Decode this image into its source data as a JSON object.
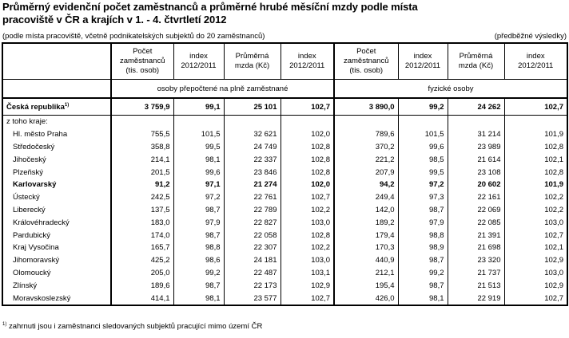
{
  "title_line1": "Průměrný evidenční počet zaměstnanců a průměrné hrubé měsíční mzdy podle místa",
  "title_line2": "pracoviště v ČR a krajích v 1. - 4. čtvrtletí 2012",
  "subtitle_left": "(podle místa pracoviště, včetně podnikatelských subjektů do 20 zaměstnanců)",
  "subtitle_right": "(předběžné výsledky)",
  "headers": {
    "col1": "Počet zaměstnanců (tis. osob)",
    "col2": "index 2012/2011",
    "col3": "Průměrná mzda (Kč)",
    "col4": "index 2012/2011",
    "col5": "Počet zaměstnanců (tis. osob)",
    "col6": "index 2012/2011",
    "col7": "Průměrná mzda (Kč)",
    "col8": "index 2012/2011",
    "group1": "osoby přepočtené na plně zaměstnané",
    "group2": "fyzické osoby"
  },
  "total": {
    "label": "Česká republika",
    "sup": "1)",
    "values": [
      "3 759,9",
      "99,1",
      "25 101",
      "102,7",
      "3 890,0",
      "99,2",
      "24 262",
      "102,7"
    ]
  },
  "of_which": "z toho kraje:",
  "rows": [
    {
      "label": "Hl. město Praha",
      "bold": false,
      "values": [
        "755,5",
        "101,5",
        "32 621",
        "102,0",
        "789,6",
        "101,5",
        "31 214",
        "101,9"
      ]
    },
    {
      "label": "Středočeský",
      "bold": false,
      "values": [
        "358,8",
        "99,5",
        "24 749",
        "102,8",
        "370,2",
        "99,6",
        "23 989",
        "102,8"
      ]
    },
    {
      "label": "Jihočeský",
      "bold": false,
      "values": [
        "214,1",
        "98,1",
        "22 337",
        "102,8",
        "221,2",
        "98,5",
        "21 614",
        "102,1"
      ]
    },
    {
      "label": "Plzeňský",
      "bold": false,
      "values": [
        "201,5",
        "99,6",
        "23 846",
        "102,8",
        "207,9",
        "99,5",
        "23 108",
        "102,8"
      ]
    },
    {
      "label": "Karlovarský",
      "bold": true,
      "values": [
        "91,2",
        "97,1",
        "21 274",
        "102,0",
        "94,2",
        "97,2",
        "20 602",
        "101,9"
      ]
    },
    {
      "label": "Ústecký",
      "bold": false,
      "values": [
        "242,5",
        "97,2",
        "22 761",
        "102,7",
        "249,4",
        "97,3",
        "22 161",
        "102,2"
      ]
    },
    {
      "label": "Liberecký",
      "bold": false,
      "values": [
        "137,5",
        "98,7",
        "22 789",
        "102,2",
        "142,0",
        "98,7",
        "22 069",
        "102,2"
      ]
    },
    {
      "label": "Královéhradecký",
      "bold": false,
      "values": [
        "183,0",
        "97,9",
        "22 827",
        "103,0",
        "189,2",
        "97,9",
        "22 085",
        "103,0"
      ]
    },
    {
      "label": "Pardubický",
      "bold": false,
      "values": [
        "174,0",
        "98,7",
        "22 058",
        "102,8",
        "179,4",
        "98,8",
        "21 391",
        "102,7"
      ]
    },
    {
      "label": "Kraj Vysočina",
      "bold": false,
      "values": [
        "165,7",
        "98,8",
        "22 307",
        "102,2",
        "170,3",
        "98,9",
        "21 698",
        "102,1"
      ]
    },
    {
      "label": "Jihomoravský",
      "bold": false,
      "values": [
        "425,2",
        "98,6",
        "24 181",
        "103,0",
        "440,9",
        "98,7",
        "23 320",
        "102,9"
      ]
    },
    {
      "label": "Olomoucký",
      "bold": false,
      "values": [
        "205,0",
        "99,2",
        "22 487",
        "103,1",
        "212,1",
        "99,2",
        "21 737",
        "103,0"
      ]
    },
    {
      "label": "Zlínský",
      "bold": false,
      "values": [
        "189,6",
        "98,7",
        "22 173",
        "102,9",
        "195,4",
        "98,7",
        "21 513",
        "102,9"
      ]
    },
    {
      "label": "Moravskoslezský",
      "bold": false,
      "values": [
        "414,1",
        "98,1",
        "23 577",
        "102,7",
        "426,0",
        "98,1",
        "22 919",
        "102,7"
      ]
    }
  ],
  "footnote_sup": "1)",
  "footnote": "zahrnuti jsou i zaměstnanci sledovaných subjektů pracující mimo území ČR"
}
